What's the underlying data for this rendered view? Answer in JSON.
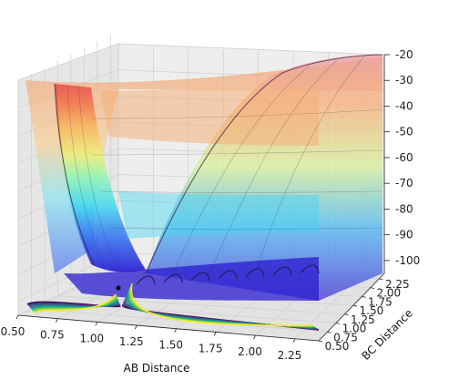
{
  "chart_data": {
    "type": "surface3d",
    "title": "",
    "xlabel": "AB Distance",
    "ylabel": "BC Distance",
    "zlabel": "",
    "x_ticks": [
      "0.50",
      "0.75",
      "1.00",
      "1.25",
      "1.50",
      "1.75",
      "2.00",
      "2.25"
    ],
    "y_ticks": [
      "0.50",
      "0.75",
      "1.00",
      "1.25",
      "1.50",
      "1.75",
      "2.00",
      "2.25"
    ],
    "z_ticks": [
      "-20",
      "-30",
      "-40",
      "-50",
      "-60",
      "-70",
      "-80",
      "-90",
      "-100"
    ],
    "xlim": [
      0.5,
      2.4
    ],
    "ylim": [
      0.5,
      2.4
    ],
    "zlim": [
      -105,
      -20
    ],
    "colormap": "jet surface, viridis contours on floor",
    "grid": true,
    "marked_point": {
      "x": 1.0,
      "y": 1.0
    }
  }
}
